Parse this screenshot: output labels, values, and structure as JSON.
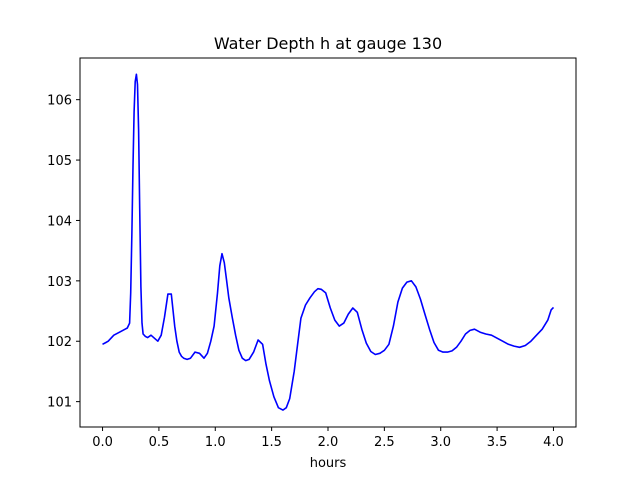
{
  "chart_data": {
    "type": "line",
    "title": "Water Depth h at gauge 130",
    "xlabel": "hours",
    "ylabel": "",
    "xlim": [
      -0.2,
      4.2
    ],
    "ylim": [
      100.58,
      106.69
    ],
    "xticks": [
      0.0,
      0.5,
      1.0,
      1.5,
      2.0,
      2.5,
      3.0,
      3.5,
      4.0
    ],
    "xtick_labels": [
      "0.0",
      "0.5",
      "1.0",
      "1.5",
      "2.0",
      "2.5",
      "3.0",
      "3.5",
      "4.0"
    ],
    "yticks": [
      101,
      102,
      103,
      104,
      105,
      106
    ],
    "ytick_labels": [
      "101",
      "102",
      "103",
      "104",
      "105",
      "106"
    ],
    "grid": false,
    "legend": "none",
    "series": [
      {
        "color": "#0000ff",
        "x": [
          0.0,
          0.03,
          0.05,
          0.1,
          0.15,
          0.2,
          0.22,
          0.24,
          0.25,
          0.26,
          0.27,
          0.28,
          0.29,
          0.3,
          0.31,
          0.32,
          0.33,
          0.34,
          0.35,
          0.36,
          0.38,
          0.4,
          0.43,
          0.46,
          0.49,
          0.52,
          0.55,
          0.58,
          0.61,
          0.64,
          0.66,
          0.68,
          0.7,
          0.72,
          0.75,
          0.78,
          0.82,
          0.86,
          0.9,
          0.93,
          0.96,
          0.99,
          1.02,
          1.04,
          1.06,
          1.08,
          1.1,
          1.12,
          1.15,
          1.18,
          1.21,
          1.24,
          1.27,
          1.3,
          1.34,
          1.38,
          1.42,
          1.45,
          1.48,
          1.52,
          1.56,
          1.6,
          1.63,
          1.66,
          1.7,
          1.73,
          1.76,
          1.8,
          1.84,
          1.88,
          1.91,
          1.94,
          1.98,
          2.02,
          2.06,
          2.1,
          2.14,
          2.18,
          2.22,
          2.26,
          2.3,
          2.34,
          2.38,
          2.42,
          2.46,
          2.5,
          2.54,
          2.58,
          2.62,
          2.66,
          2.7,
          2.74,
          2.78,
          2.82,
          2.86,
          2.9,
          2.94,
          2.98,
          3.02,
          3.06,
          3.1,
          3.14,
          3.18,
          3.22,
          3.26,
          3.3,
          3.35,
          3.4,
          3.45,
          3.5,
          3.55,
          3.6,
          3.65,
          3.7,
          3.75,
          3.8,
          3.85,
          3.9,
          3.95,
          3.98,
          4.0
        ],
        "y": [
          101.95,
          101.98,
          102.0,
          102.1,
          102.15,
          102.2,
          102.22,
          102.3,
          102.8,
          103.8,
          104.9,
          105.8,
          106.3,
          106.42,
          106.25,
          105.5,
          104.2,
          102.9,
          102.3,
          102.12,
          102.08,
          102.06,
          102.1,
          102.05,
          102.0,
          102.1,
          102.4,
          102.78,
          102.78,
          102.25,
          102.0,
          101.82,
          101.75,
          101.72,
          101.7,
          101.72,
          101.82,
          101.8,
          101.72,
          101.8,
          102.0,
          102.25,
          102.8,
          103.25,
          103.45,
          103.3,
          103.02,
          102.72,
          102.4,
          102.1,
          101.85,
          101.72,
          101.68,
          101.7,
          101.82,
          102.02,
          101.95,
          101.62,
          101.35,
          101.08,
          100.9,
          100.86,
          100.9,
          101.05,
          101.5,
          101.95,
          102.38,
          102.6,
          102.72,
          102.82,
          102.87,
          102.86,
          102.8,
          102.55,
          102.35,
          102.25,
          102.3,
          102.45,
          102.55,
          102.48,
          102.2,
          101.97,
          101.83,
          101.78,
          101.8,
          101.85,
          101.95,
          102.25,
          102.65,
          102.88,
          102.98,
          103.0,
          102.9,
          102.7,
          102.45,
          102.2,
          101.98,
          101.85,
          101.82,
          101.82,
          101.84,
          101.9,
          102.0,
          102.12,
          102.18,
          102.2,
          102.15,
          102.12,
          102.1,
          102.05,
          102.0,
          101.95,
          101.92,
          101.9,
          101.93,
          102.0,
          102.1,
          102.2,
          102.35,
          102.52,
          102.56
        ]
      }
    ]
  }
}
